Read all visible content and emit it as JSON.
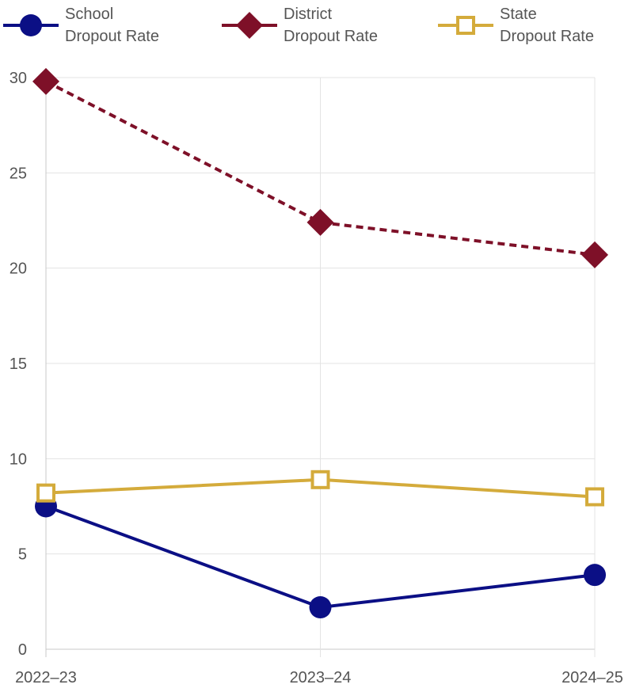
{
  "chart_data": {
    "type": "line",
    "title": "",
    "xlabel": "",
    "ylabel": "",
    "categories": [
      "2022–23",
      "2023–24",
      "2024–25"
    ],
    "ylim": [
      0,
      30
    ],
    "yticks": [
      0,
      5,
      10,
      15,
      20,
      25,
      30
    ],
    "grid": true,
    "legend_position": "top",
    "series": [
      {
        "key": "school",
        "name_lines": [
          "School",
          "Dropout Rate"
        ],
        "values": [
          7.5,
          2.2,
          3.9
        ],
        "color": "#0b0f85",
        "marker": "circle",
        "line_style": "solid"
      },
      {
        "key": "district",
        "name_lines": [
          "District",
          "Dropout Rate"
        ],
        "values": [
          29.8,
          22.4,
          20.7
        ],
        "color": "#7e1028",
        "marker": "diamond",
        "line_style": "dashed"
      },
      {
        "key": "state",
        "name_lines": [
          "State",
          "Dropout Rate"
        ],
        "values": [
          8.2,
          8.9,
          8.0
        ],
        "color": "#d4ab3b",
        "marker": "square-open",
        "line_style": "solid"
      }
    ]
  }
}
